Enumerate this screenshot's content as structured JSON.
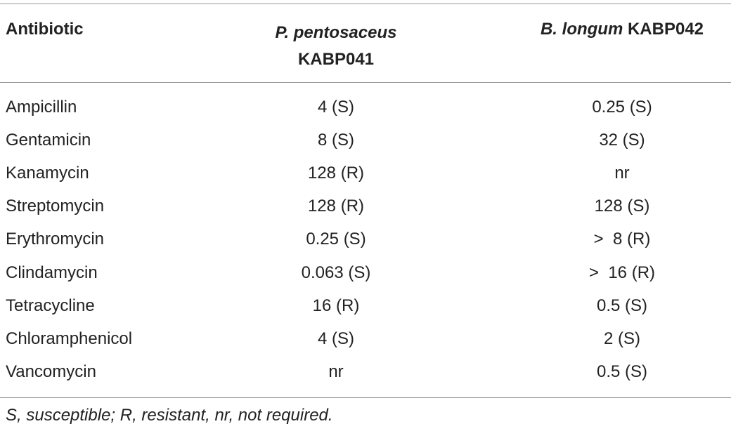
{
  "table": {
    "header": [
      {
        "text": "Antibiotic"
      },
      {
        "italic": "P. pentosaceus",
        "text": "KABP041"
      },
      {
        "italic": "B. longum",
        "text": "KABP042"
      }
    ],
    "rows": [
      [
        "Ampicillin",
        "4 (S)",
        "0.25 (S)"
      ],
      [
        "Gentamicin",
        "8 (S)",
        "32 (S)"
      ],
      [
        "Kanamycin",
        "128 (R)",
        "nr"
      ],
      [
        "Streptomycin",
        "128 (R)",
        "128 (S)"
      ],
      [
        "Erythromycin",
        "0.25 (S)",
        ">  8 (R)"
      ],
      [
        "Clindamycin",
        "0.063 (S)",
        ">  16 (R)"
      ],
      [
        "Tetracycline",
        "16 (R)",
        "0.5 (S)"
      ],
      [
        "Chloramphenicol",
        "4 (S)",
        "2 (S)"
      ],
      [
        "Vancomycin",
        "nr",
        "0.5 (S)"
      ]
    ],
    "footnote": "S, susceptible; R, resistant, nr, not required."
  }
}
